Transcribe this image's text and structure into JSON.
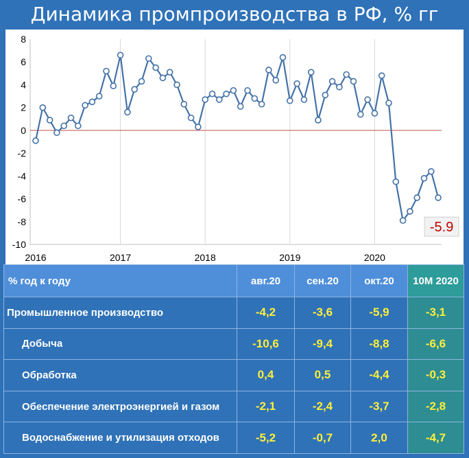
{
  "title": "Динамика промпроизводства в РФ, % гг",
  "chart_data": {
    "type": "line",
    "title": "Динамика промпроизводства в РФ, % гг",
    "xlabel": "",
    "ylabel": "",
    "ylim": [
      -10,
      8
    ],
    "yticks": [
      -10,
      -8,
      -6,
      -4,
      -2,
      0,
      2,
      4,
      6,
      8
    ],
    "x_tick_labels": [
      "2016",
      "2017",
      "2018",
      "2019",
      "2020"
    ],
    "x_start": "2016-01",
    "grid": "vertical",
    "legend": "none",
    "series_color": "#4472a8",
    "zero_line_color": "#c0504d",
    "series": [
      {
        "values": [
          -0.9,
          2.0,
          0.9,
          -0.2,
          0.4,
          1.1,
          0.4,
          2.2,
          2.5,
          3.0,
          5.2,
          3.9,
          6.6,
          1.6,
          3.6,
          4.3,
          6.3,
          5.5,
          4.6,
          5.1,
          4.0,
          2.3,
          1.1,
          0.3,
          2.7,
          3.2,
          2.7,
          3.2,
          3.5,
          2.1,
          3.5,
          2.8,
          2.3,
          5.3,
          4.4,
          6.4,
          2.6,
          4.1,
          2.7,
          5.1,
          0.9,
          3.1,
          4.3,
          3.8,
          4.9,
          4.3,
          1.4,
          2.7,
          1.5,
          4.8,
          2.4,
          -4.5,
          -7.9,
          -7.1,
          -5.9,
          -4.2,
          -3.6,
          -5.9
        ]
      }
    ],
    "callout": "-5.9"
  },
  "table": {
    "headers": [
      "% год к году",
      "авг.20",
      "сен.20",
      "окт.20",
      "10М 2020"
    ],
    "rows": [
      {
        "label": "Промышленное производство",
        "values": [
          "-4,2",
          "-3,6",
          "-5,9",
          "-3,1"
        ]
      },
      {
        "label": "Добыча",
        "values": [
          "-10,6",
          "-9,4",
          "-8,8",
          "-6,6"
        ]
      },
      {
        "label": "Обработка",
        "values": [
          "0,4",
          "0,5",
          "-4,4",
          "-0,3"
        ]
      },
      {
        "label": "Обеспечение электроэнергией и газом",
        "values": [
          "-2,1",
          "-2,4",
          "-3,7",
          "-2,8"
        ]
      },
      {
        "label": "Водоснабжение и утилизация отходов",
        "values": [
          "-5,2",
          "-0,7",
          "2,0",
          "-4,7"
        ]
      }
    ]
  }
}
